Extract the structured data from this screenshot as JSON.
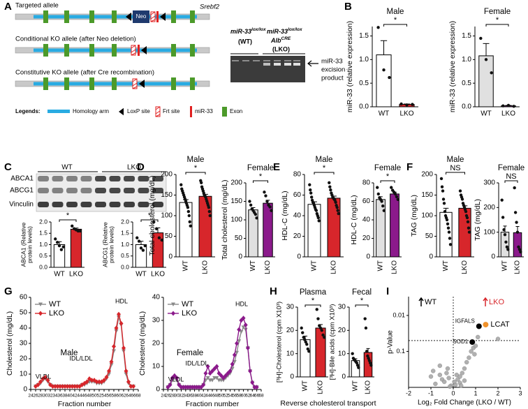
{
  "panel_labels": [
    "A",
    "B",
    "C",
    "D",
    "E",
    "F",
    "G",
    "H",
    "I"
  ],
  "diagram": {
    "alleles": [
      "Targeted allele",
      "Conditional KO allele (after Neo deletion)",
      "Constitutive KO allele (after Cre recombination)"
    ],
    "gene": "Srebf2",
    "neo": "Neo",
    "legend_title": "Legends:",
    "legend": [
      "Homology arm",
      "LoxP site",
      "Frt site",
      "miR-33",
      "Exon"
    ]
  },
  "gel": {
    "lane1": [
      "miR-33",
      "lox/lox",
      "(WT)"
    ],
    "lane2": [
      "miR-33",
      "lox/lox",
      "Alb",
      "CRE",
      "(LKO)"
    ],
    "product": [
      "miR-33",
      "excision",
      "product"
    ]
  },
  "blot": {
    "groups": [
      "WT",
      "LKO"
    ],
    "rows": [
      "ABCA1",
      "ABCG1",
      "Vinculin"
    ]
  },
  "h_caption": "Reverse cholesterol transport",
  "chart_data": [
    {
      "type": "bar",
      "title": "Male",
      "ylabel": "miR-33 (relative expression)",
      "categories": [
        "WT",
        "LKO"
      ],
      "values": [
        1.1,
        0.05
      ],
      "errors": [
        0.3,
        0.01
      ],
      "colors": [
        "#ffffff",
        "#d7262b"
      ],
      "points": [
        [
          1.68,
          0.78,
          0.62
        ],
        [
          0.06,
          0.04,
          0.05
        ]
      ],
      "ylim": [
        0,
        1.7
      ],
      "yticks": [
        {
          "value": 0,
          "label": "0.0"
        },
        0.5,
        {
          "value": 1,
          "label": "1.0"
        },
        1.5
      ],
      "annotation": "*"
    },
    {
      "type": "bar",
      "title": "Female",
      "ylabel": "miR-33 (relative expression)",
      "categories": [
        "WT",
        "LKO"
      ],
      "values": [
        1.08,
        0.02
      ],
      "errors": [
        0.26,
        0.01
      ],
      "colors": [
        "#e0e0e0",
        "#8b1a8b"
      ],
      "points": [
        [
          1.45,
          1.0,
          0.72
        ],
        [
          0.02,
          0.03,
          0.01
        ]
      ],
      "ylim": [
        0,
        1.7
      ],
      "yticks": [
        {
          "value": 0,
          "label": "0.0"
        },
        0.5,
        {
          "value": 1,
          "label": "1.0"
        },
        1.5
      ],
      "annotation": "*"
    },
    {
      "type": "bar",
      "ylabel": [
        "ABCA1 (Relative",
        "protein levels)"
      ],
      "categories": [
        "WT",
        "LKO"
      ],
      "values": [
        1.0,
        1.68
      ],
      "errors": [
        0.13,
        0.05
      ],
      "colors": [
        "#ffffff",
        "#d7262b"
      ],
      "points": [
        [
          1.25,
          1.1,
          0.95,
          0.78,
          0.9
        ],
        [
          1.82,
          1.7,
          1.65,
          1.6,
          1.6
        ]
      ],
      "ylim": [
        0,
        2
      ],
      "yticks": [
        {
          "value": 0,
          "label": "0.0"
        },
        0.5,
        {
          "value": 1,
          "label": "1.0"
        },
        1.5,
        {
          "value": 2,
          "label": "2.0"
        }
      ],
      "annotation": "*"
    },
    {
      "type": "bar",
      "ylabel": [
        "ABCG1 (Relative",
        "protein levels)"
      ],
      "categories": [
        "WT",
        "LKO"
      ],
      "values": [
        1.0,
        1.52
      ],
      "errors": [
        0.15,
        0.22
      ],
      "colors": [
        "#ffffff",
        "#d7262b"
      ],
      "points": [
        [
          1.3,
          1.15,
          0.85,
          0.75,
          0.95
        ],
        [
          2.0,
          1.7,
          1.3,
          1.2
        ]
      ],
      "ylim": [
        0,
        2
      ],
      "yticks": [
        {
          "value": 0,
          "label": "0.0"
        },
        0.5,
        {
          "value": 1,
          "label": "1.0"
        },
        1.5,
        {
          "value": 2,
          "label": "2.0"
        }
      ],
      "annotation": "*"
    },
    {
      "type": "bar",
      "title": "Male",
      "ylabel": "Total cholesterol (mg/dL)",
      "categories": [
        "WT",
        "LKO"
      ],
      "values": [
        132,
        147
      ],
      "errors": [
        7,
        5
      ],
      "colors": [
        "#ffffff",
        "#d7262b"
      ],
      "points": [
        [
          175,
          165,
          160,
          155,
          150,
          145,
          140,
          135,
          130,
          125,
          120,
          110,
          100,
          85,
          75
        ],
        [
          185,
          180,
          170,
          165,
          160,
          155,
          150,
          148,
          145,
          140,
          135,
          130,
          125,
          120,
          110,
          100
        ]
      ],
      "ylim": [
        0,
        200
      ],
      "yticks": [
        0,
        50,
        100,
        150,
        200
      ],
      "annotation": "*"
    },
    {
      "type": "bar",
      "title": "Female",
      "ylabel": "Total cholesterol (mg/dL)",
      "categories": [
        "WT",
        "LKO"
      ],
      "values": [
        127,
        145
      ],
      "errors": [
        6,
        8
      ],
      "colors": [
        "#e0e0e0",
        "#8b1a8b"
      ],
      "points": [
        [
          150,
          140,
          130,
          125,
          120,
          115,
          105
        ],
        [
          175,
          165,
          150,
          140,
          135,
          125
        ]
      ],
      "ylim": [
        0,
        200
      ],
      "yticks": [
        0,
        50,
        100,
        150,
        200
      ],
      "annotation": "*"
    },
    {
      "type": "bar",
      "title": "Male",
      "ylabel": "HDL-C (mg/dL)",
      "categories": [
        "WT",
        "LKO"
      ],
      "values": [
        51,
        57
      ],
      "errors": [
        2.5,
        2
      ],
      "colors": [
        "#ffffff",
        "#d7262b"
      ],
      "points": [
        [
          70,
          65,
          62,
          58,
          55,
          53,
          52,
          50,
          48,
          46,
          45,
          42,
          40,
          38,
          35
        ],
        [
          72,
          68,
          65,
          62,
          60,
          58,
          57,
          56,
          55,
          53,
          50,
          48,
          45,
          42
        ]
      ],
      "ylim": [
        0,
        80
      ],
      "yticks": [
        0,
        20,
        40,
        60,
        80
      ],
      "annotation": "*"
    },
    {
      "type": "bar",
      "title": "Female",
      "ylabel": "HDL-C (mg/dL)",
      "categories": [
        "WT",
        "LKO"
      ],
      "values": [
        62,
        68
      ],
      "errors": [
        3,
        2
      ],
      "colors": [
        "#e0e0e0",
        "#8b1a8b"
      ],
      "points": [
        [
          75,
          68,
          64,
          62,
          60,
          55,
          50
        ],
        [
          75,
          72,
          70,
          68,
          65,
          62
        ]
      ],
      "ylim": [
        0,
        80
      ],
      "yticks": [
        0,
        20,
        40,
        60,
        80
      ],
      "annotation": "*"
    },
    {
      "type": "bar",
      "title": "Male",
      "ylabel": "TAG (mg/dL)",
      "categories": [
        "WT",
        "LKO"
      ],
      "values": [
        108,
        118
      ],
      "errors": [
        10,
        6
      ],
      "colors": [
        "#ffffff",
        "#d7262b"
      ],
      "points": [
        [
          190,
          170,
          160,
          140,
          130,
          110,
          100,
          95,
          90,
          80,
          70,
          60,
          45,
          30
        ],
        [
          160,
          150,
          145,
          140,
          130,
          125,
          120,
          115,
          110,
          100,
          95,
          85,
          70,
          60
        ]
      ],
      "ylim": [
        0,
        200
      ],
      "yticks": [
        0,
        50,
        100,
        150,
        200
      ],
      "annotation": "NS"
    },
    {
      "type": "bar",
      "title": "Female",
      "ylabel": "TAG (mg/dL)",
      "categories": [
        "WT",
        "LKO"
      ],
      "values": [
        100,
        98
      ],
      "errors": [
        25,
        25
      ],
      "colors": [
        "#e0e0e0",
        "#8b1a8b"
      ],
      "points": [
        [
          230,
          160,
          110,
          90,
          60,
          40,
          30
        ],
        [
          280,
          180,
          140,
          100,
          40,
          30,
          20
        ]
      ],
      "ylim": [
        0,
        300
      ],
      "yticks": [
        0,
        100,
        200,
        300
      ],
      "annotation": "NS"
    },
    {
      "type": "line",
      "title": "Male",
      "xlabel": "Fraction number",
      "ylabel": "Cholesterol (mg/dL)",
      "annotations": [
        "VLDL",
        "IDL/LDL",
        "HDL"
      ],
      "x": [
        26,
        27,
        28,
        29,
        30,
        31,
        32,
        33,
        34,
        35,
        36,
        37,
        38,
        39,
        40,
        41,
        42,
        43,
        44,
        45,
        46,
        47,
        48,
        49,
        50,
        51,
        52,
        53,
        54,
        55,
        56,
        57,
        58,
        59,
        60,
        61,
        62,
        63,
        64,
        65,
        66
      ],
      "series": [
        {
          "name": "WT",
          "color": "#8a8a8a",
          "marker": "triangle",
          "values": [
            2,
            3,
            4,
            6,
            7,
            5,
            3,
            2,
            2,
            2,
            2,
            2,
            2,
            2,
            2,
            2,
            2,
            2,
            2,
            3,
            3,
            4,
            5,
            5,
            5,
            4,
            4,
            4,
            5,
            7,
            10,
            16,
            25,
            38,
            47,
            42,
            25,
            10,
            4,
            2,
            2
          ]
        },
        {
          "name": "LKO",
          "color": "#d7262b",
          "marker": "diamond",
          "values": [
            2,
            3,
            5,
            7,
            8,
            6,
            3,
            2,
            2,
            2,
            2,
            2,
            2,
            2,
            2,
            2,
            2,
            2,
            2,
            3,
            4,
            5,
            7,
            6,
            6,
            5,
            5,
            5,
            6,
            8,
            12,
            18,
            28,
            40,
            49,
            43,
            27,
            12,
            5,
            2,
            2
          ]
        }
      ],
      "xlim": [
        24,
        68
      ],
      "xticks": [
        24,
        26,
        28,
        30,
        32,
        34,
        36,
        38,
        40,
        42,
        44,
        46,
        48,
        50,
        52,
        54,
        56,
        58,
        60,
        62,
        64,
        66,
        68
      ],
      "ylim": [
        0,
        60
      ],
      "yticks": [
        0,
        10,
        20,
        30,
        40,
        50,
        60
      ]
    },
    {
      "type": "line",
      "title": "Female",
      "xlabel": "Fraction number",
      "ylabel": "Cholesterol (mg/dL)",
      "annotations": [
        "VLDL",
        "IDL/LDL",
        "HDL"
      ],
      "x": [
        26,
        27,
        28,
        29,
        30,
        31,
        32,
        33,
        34,
        35,
        36,
        37,
        38,
        39,
        40,
        41,
        42,
        43,
        44,
        45,
        46,
        47,
        48,
        49,
        50,
        51,
        52,
        53,
        54,
        55,
        56,
        57,
        58,
        59,
        60,
        61,
        62,
        63,
        64,
        65,
        66
      ],
      "series": [
        {
          "name": "WT",
          "color": "#8a8a8a",
          "marker": "triangle",
          "values": [
            1,
            2,
            4,
            5,
            4,
            2,
            1,
            1,
            1,
            1,
            1,
            1,
            1,
            1,
            1,
            1,
            2,
            4,
            5,
            4,
            4,
            5,
            5,
            4,
            4,
            4,
            5,
            6,
            7,
            9,
            12,
            16,
            21,
            25,
            27,
            26,
            18,
            8,
            3,
            1,
            1
          ]
        },
        {
          "name": "LKO",
          "color": "#8b1a8b",
          "marker": "diamond",
          "values": [
            1,
            2,
            5,
            6,
            5,
            2,
            1,
            1,
            1,
            1,
            1,
            1,
            1,
            1,
            1,
            1,
            2,
            7,
            10,
            7,
            8,
            9,
            10,
            7,
            6,
            5,
            6,
            7,
            8,
            11,
            15,
            20,
            26,
            30,
            31,
            28,
            18,
            8,
            3,
            1,
            1
          ]
        }
      ],
      "xlim": [
        24,
        68
      ],
      "xticks": [
        24,
        26,
        28,
        30,
        32,
        34,
        36,
        38,
        40,
        42,
        44,
        46,
        48,
        50,
        52,
        54,
        56,
        58,
        60,
        62,
        64,
        66,
        68
      ],
      "ylim": [
        0,
        40
      ],
      "yticks": [
        0,
        10,
        20,
        30,
        40
      ]
    },
    {
      "type": "bar",
      "title": "Plasma",
      "ylabel": "[³H]-Cholesterol (cpm X10³)",
      "categories": [
        "WT",
        "LKO"
      ],
      "values": [
        16,
        21
      ],
      "errors": [
        1.5,
        1.5
      ],
      "colors": [
        "#ffffff",
        "#d7262b"
      ],
      "points": [
        [
          21,
          19,
          17,
          16,
          15,
          14,
          12,
          11
        ],
        [
          29,
          25,
          22,
          21,
          20,
          18,
          17
        ]
      ],
      "ylim": [
        0,
        30
      ],
      "yticks": [
        0,
        10,
        20,
        30
      ],
      "annotation": "*"
    },
    {
      "type": "bar",
      "title": "Fecal",
      "ylabel": "[³H]-Bile acids (cpm X10³)",
      "categories": [
        "WT",
        "LKO"
      ],
      "values": [
        7,
        10.5
      ],
      "errors": [
        0.8,
        1.7
      ],
      "colors": [
        "#ffffff",
        "#d7262b"
      ],
      "points": [
        [
          10,
          8,
          7.5,
          7,
          6.5,
          6,
          5,
          4
        ],
        [
          25,
          21,
          11,
          9,
          8,
          7,
          6,
          5
        ]
      ],
      "ylim": [
        0,
        30
      ],
      "yticks": [
        0,
        10,
        20,
        30
      ],
      "annotation": "*"
    },
    {
      "type": "scatter",
      "xlabel": "Log₂ Fold Change (LKO / WT)",
      "ylabel": "p-Value",
      "x": [
        -0.9,
        -0.6,
        -1.0,
        -0.5,
        -0.8,
        -0.3,
        -0.4,
        -0.2,
        -0.1,
        -0.25,
        -0.6,
        0.1,
        0.2,
        0.3,
        0.4,
        0.5,
        0.6,
        0.7,
        0.8,
        0.9,
        0.3,
        0.5,
        0.15,
        1.0,
        1.1,
        0.95,
        2.0,
        -0.15,
        0.05,
        0.35
      ],
      "y": [
        0.35,
        0.25,
        0.5,
        0.6,
        0.8,
        0.4,
        0.7,
        0.55,
        0.9,
        0.3,
        0.45,
        0.85,
        0.6,
        0.5,
        0.4,
        0.3,
        0.2,
        0.15,
        0.1,
        0.08,
        0.75,
        0.65,
        0.45,
        0.07,
        0.04,
        0.12,
        0.045,
        0.95,
        0.7,
        0.9
      ],
      "color": "#a8a8a8",
      "highlights": [
        {
          "label": "LCAT",
          "x": 1.45,
          "y": 0.018,
          "color": "#f0922b"
        },
        {
          "label": "IGFALS",
          "x": 1.15,
          "y": 0.02,
          "color": "#000000"
        },
        {
          "label": "SOD1",
          "x": 0.85,
          "y": 0.055,
          "color": "#000000"
        }
      ],
      "xlim": [
        -2,
        3
      ],
      "xticks": [
        -2,
        -1,
        0,
        1,
        2,
        3
      ],
      "ylim": [
        1,
        0.003
      ],
      "yticks": [
        0.01,
        0.1
      ],
      "log_y": true,
      "hline": 0.05,
      "vline": 0,
      "legend": [
        {
          "text": "WT",
          "color": "#000000"
        },
        {
          "text": "LKO",
          "color": "#d7262b"
        }
      ]
    }
  ]
}
